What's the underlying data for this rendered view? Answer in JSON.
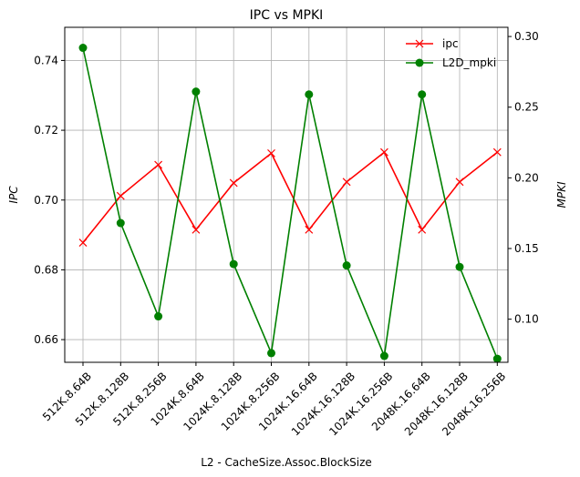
{
  "chart_data": {
    "type": "line",
    "title": "IPC vs MPKI",
    "xlabel": "L2 - CacheSize.Assoc.BlockSize",
    "ylabel_left": "IPC",
    "ylabel_right": "MPKI",
    "categories": [
      "512K.8.64B",
      "512K.8.128B",
      "512K.8.256B",
      "1024K.8.64B",
      "1024K.8.128B",
      "1024K.8.256B",
      "1024K.16.64B",
      "1024K.16.128B",
      "1024K.16.256B",
      "2048K.16.64B",
      "2048K.16.128B",
      "2048K.16.256B"
    ],
    "ylim_left": [
      0.6535,
      0.7495
    ],
    "ylim_right": [
      0.0695,
      0.3065
    ],
    "yticks_left": [
      0.66,
      0.68,
      0.7,
      0.72,
      0.74
    ],
    "ytick_labels_left": [
      "0.66",
      "0.68",
      "0.70",
      "0.72",
      "0.74"
    ],
    "yticks_right": [
      0.1,
      0.15,
      0.2,
      0.25,
      0.3
    ],
    "ytick_labels_right": [
      "0.10",
      "0.15",
      "0.20",
      "0.25",
      "0.30"
    ],
    "grid": true,
    "legend_position": "top-right",
    "series": [
      {
        "name": "ipc",
        "axis": "left",
        "color": "#ff0000",
        "marker": "x",
        "values": [
          0.6878,
          0.7012,
          0.7101,
          0.6915,
          0.7049,
          0.7134,
          0.6915,
          0.7052,
          0.7137,
          0.6915,
          0.7052,
          0.7137
        ]
      },
      {
        "name": "L2D_mpki",
        "axis": "right",
        "color": "#008000",
        "marker": "o",
        "values": [
          0.292,
          0.168,
          0.102,
          0.261,
          0.139,
          0.076,
          0.259,
          0.138,
          0.074,
          0.259,
          0.137,
          0.072
        ]
      }
    ]
  }
}
